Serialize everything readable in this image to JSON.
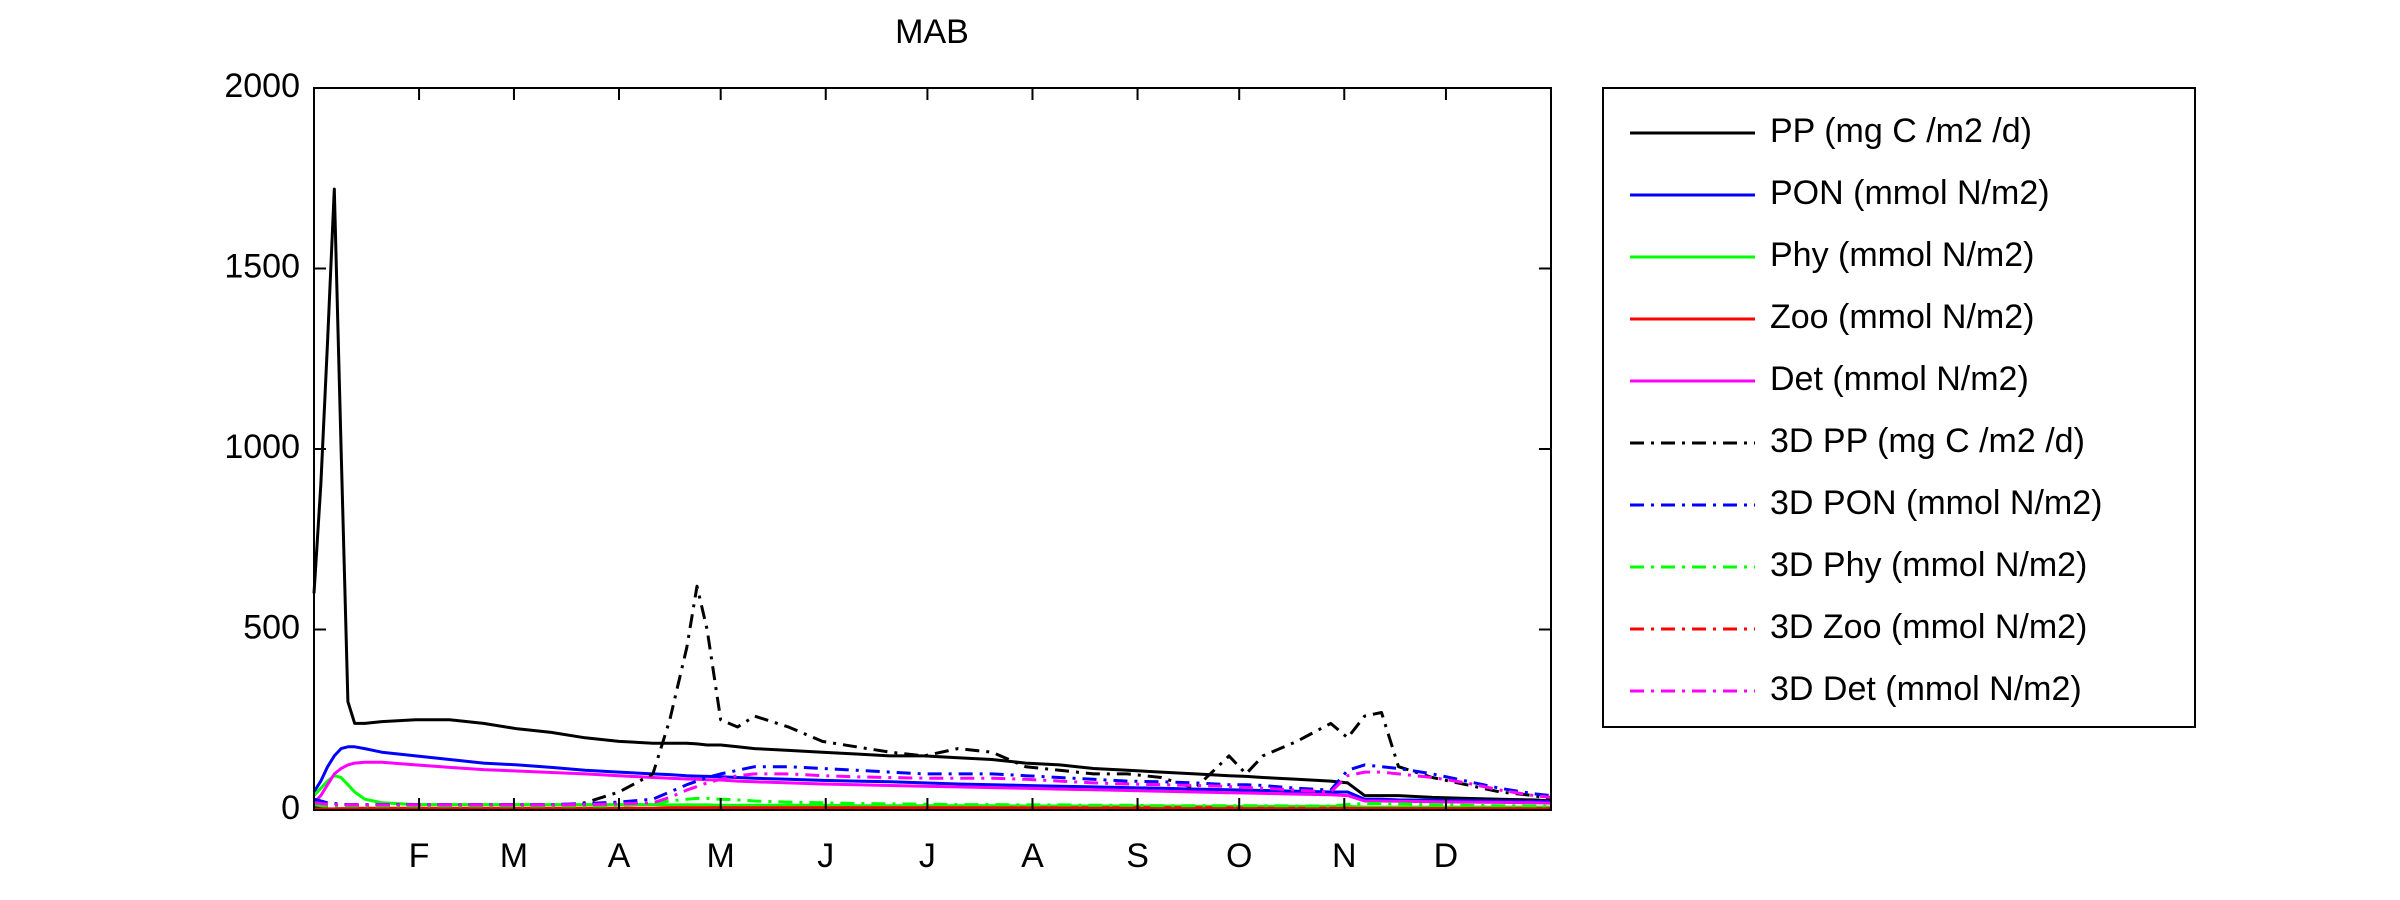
{
  "chart_data": {
    "type": "line",
    "title": "MAB",
    "x": [
      0,
      2,
      4,
      6,
      8,
      10,
      12,
      15,
      20,
      30,
      40,
      50,
      60,
      70,
      80,
      90,
      100,
      105,
      110,
      113,
      116,
      120,
      125,
      130,
      140,
      150,
      160,
      170,
      180,
      190,
      200,
      210,
      220,
      230,
      240,
      250,
      260,
      270,
      275,
      280,
      290,
      300,
      305,
      310,
      315,
      320,
      330,
      340,
      350,
      360,
      365
    ],
    "xlim": [
      0,
      365
    ],
    "xticks": [
      {
        "value": 31,
        "label": "F"
      },
      {
        "value": 59,
        "label": "M"
      },
      {
        "value": 90,
        "label": "A"
      },
      {
        "value": 120,
        "label": "M"
      },
      {
        "value": 151,
        "label": "J"
      },
      {
        "value": 181,
        "label": "J"
      },
      {
        "value": 212,
        "label": "A"
      },
      {
        "value": 243,
        "label": "S"
      },
      {
        "value": 273,
        "label": "O"
      },
      {
        "value": 304,
        "label": "N"
      },
      {
        "value": 334,
        "label": "D"
      }
    ],
    "ylim": [
      0,
      2000
    ],
    "yticks": [
      0,
      500,
      1000,
      1500,
      2000
    ],
    "series": [
      {
        "name": "PP (mg C /m2 /d)",
        "color": "#000000",
        "style": "solid",
        "values": [
          600,
          900,
          1300,
          1720,
          1000,
          300,
          240,
          240,
          245,
          250,
          250,
          240,
          225,
          215,
          200,
          190,
          185,
          185,
          185,
          183,
          180,
          180,
          175,
          170,
          165,
          160,
          155,
          150,
          150,
          145,
          140,
          130,
          125,
          115,
          110,
          105,
          100,
          95,
          93,
          90,
          85,
          80,
          75,
          40,
          40,
          40,
          35,
          32,
          30,
          28,
          25
        ]
      },
      {
        "name": "PON (mmol N/m2)",
        "color": "#0000ff",
        "style": "solid",
        "values": [
          50,
          80,
          120,
          150,
          170,
          175,
          175,
          170,
          160,
          150,
          140,
          130,
          125,
          118,
          110,
          105,
          100,
          98,
          95,
          94,
          93,
          92,
          90,
          88,
          85,
          82,
          80,
          78,
          75,
          72,
          70,
          68,
          66,
          64,
          62,
          60,
          58,
          56,
          55,
          54,
          52,
          50,
          50,
          30,
          30,
          28,
          27,
          26,
          25,
          24,
          23
        ]
      },
      {
        "name": "Phy (mmol N/m2)",
        "color": "#00ff00",
        "style": "solid",
        "values": [
          40,
          60,
          80,
          95,
          90,
          70,
          50,
          30,
          20,
          15,
          15,
          15,
          15,
          15,
          15,
          15,
          15,
          14,
          14,
          14,
          14,
          13,
          13,
          13,
          13,
          13,
          12,
          12,
          12,
          12,
          12,
          11,
          11,
          11,
          11,
          11,
          10,
          10,
          10,
          10,
          10,
          10,
          10,
          8,
          8,
          8,
          8,
          8,
          8,
          8,
          8
        ]
      },
      {
        "name": "Zoo (mmol N/m2)",
        "color": "#ff0000",
        "style": "solid",
        "values": [
          2,
          2,
          3,
          3,
          4,
          4,
          5,
          5,
          5,
          5,
          5,
          5,
          5,
          5,
          5,
          5,
          5,
          6,
          6,
          6,
          6,
          6,
          6,
          6,
          6,
          6,
          6,
          6,
          6,
          6,
          6,
          6,
          6,
          6,
          6,
          6,
          6,
          6,
          5,
          5,
          5,
          5,
          5,
          4,
          4,
          4,
          4,
          4,
          4,
          4,
          4
        ]
      },
      {
        "name": "Det (mmol N/m2)",
        "color": "#ff00ff",
        "style": "solid",
        "values": [
          20,
          40,
          70,
          100,
          115,
          125,
          130,
          132,
          132,
          125,
          118,
          112,
          108,
          104,
          100,
          95,
          90,
          88,
          86,
          85,
          84,
          83,
          80,
          78,
          75,
          72,
          70,
          68,
          66,
          64,
          62,
          60,
          58,
          56,
          54,
          52,
          50,
          48,
          47,
          46,
          44,
          42,
          40,
          25,
          25,
          24,
          23,
          22,
          21,
          20,
          19
        ]
      },
      {
        "name": "3D PP (mg C /m2 /d)",
        "color": "#000000",
        "style": "dashdot",
        "values": [
          10,
          10,
          10,
          10,
          10,
          10,
          10,
          10,
          10,
          10,
          10,
          10,
          10,
          10,
          20,
          50,
          100,
          250,
          450,
          620,
          500,
          250,
          230,
          260,
          230,
          190,
          175,
          160,
          150,
          170,
          160,
          120,
          110,
          100,
          100,
          90,
          60,
          150,
          100,
          150,
          190,
          240,
          200,
          260,
          270,
          120,
          90,
          70,
          50,
          40,
          30
        ]
      },
      {
        "name": "3D PON (mmol N/m2)",
        "color": "#0000ff",
        "style": "dashdot",
        "values": [
          30,
          25,
          20,
          18,
          16,
          15,
          15,
          15,
          15,
          15,
          15,
          15,
          15,
          15,
          18,
          22,
          30,
          50,
          70,
          80,
          90,
          100,
          110,
          120,
          120,
          115,
          110,
          105,
          100,
          100,
          100,
          95,
          90,
          85,
          80,
          78,
          75,
          70,
          70,
          68,
          60,
          55,
          110,
          125,
          120,
          115,
          100,
          80,
          60,
          45,
          40
        ]
      },
      {
        "name": "3D Phy (mmol N/m2)",
        "color": "#00ff00",
        "style": "dashdot",
        "values": [
          15,
          12,
          10,
          10,
          10,
          10,
          10,
          10,
          10,
          10,
          10,
          10,
          10,
          10,
          10,
          12,
          18,
          25,
          30,
          32,
          32,
          30,
          28,
          25,
          22,
          20,
          18,
          17,
          16,
          15,
          15,
          14,
          14,
          13,
          13,
          12,
          12,
          12,
          12,
          12,
          11,
          11,
          15,
          18,
          18,
          17,
          15,
          13,
          12,
          11,
          10
        ]
      },
      {
        "name": "3D Zoo (mmol N/m2)",
        "color": "#ff0000",
        "style": "dashdot",
        "values": [
          3,
          3,
          3,
          3,
          3,
          3,
          3,
          3,
          3,
          3,
          3,
          3,
          3,
          3,
          3,
          3,
          3,
          3,
          3,
          3,
          3,
          3,
          3,
          3,
          3,
          3,
          3,
          3,
          3,
          3,
          3,
          3,
          3,
          3,
          3,
          3,
          3,
          3,
          3,
          3,
          3,
          3,
          3,
          3,
          3,
          3,
          3,
          3,
          3,
          3,
          3
        ]
      },
      {
        "name": "3D Det (mmol N/m2)",
        "color": "#ff00ff",
        "style": "dashdot",
        "values": [
          20,
          18,
          16,
          15,
          14,
          14,
          14,
          14,
          14,
          14,
          14,
          14,
          14,
          14,
          15,
          17,
          20,
          35,
          55,
          65,
          75,
          85,
          95,
          100,
          100,
          95,
          92,
          90,
          88,
          88,
          88,
          85,
          80,
          75,
          72,
          70,
          68,
          65,
          62,
          60,
          55,
          50,
          95,
          105,
          105,
          100,
          90,
          75,
          55,
          40,
          35
        ]
      }
    ]
  }
}
